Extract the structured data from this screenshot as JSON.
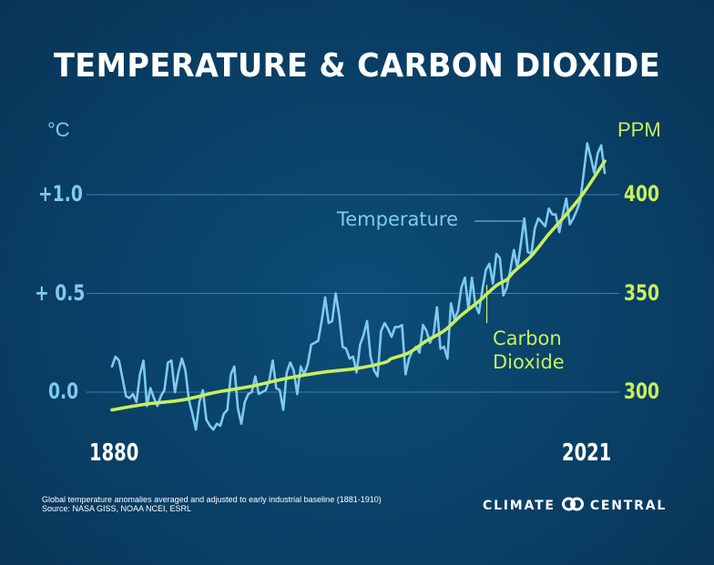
{
  "title": "TEMPERATURE & CARBON DIOXIDE",
  "footnote": {
    "line1": "Global temperature anomalies averaged and adjusted to early industrial baseline (1881-1910)",
    "line2": "Source: NASA GISS, NOAA NCEI, ESRL"
  },
  "brand": {
    "left": "CLIMATE",
    "right": "CENTRAL",
    "logo_icon": "interlocking-rings-icon"
  },
  "colors": {
    "temperature": "#7fcaef",
    "co2": "#c8ef5c",
    "grid": "#4f95bd",
    "background": "#0a4269",
    "text": "#ffffff"
  },
  "chart_data": {
    "type": "line",
    "title": "TEMPERATURE & CARBON DIOXIDE",
    "x_range": [
      1880,
      2021
    ],
    "x_tick_labels": [
      "1880",
      "2021"
    ],
    "grid": "horizontal",
    "y_left": {
      "label": "°C",
      "range": [
        -0.2,
        1.3
      ],
      "ticks": [
        0.0,
        0.5,
        1.0
      ],
      "tick_labels": [
        "0.0",
        "+ 0.5",
        "+1.0"
      ]
    },
    "y_right": {
      "label": "PPM",
      "range": [
        290.8,
        420
      ],
      "ticks": [
        300,
        350,
        400
      ],
      "tick_labels": [
        "300",
        "350",
        "400"
      ]
    },
    "annotations": [
      {
        "text": "Temperature",
        "series": "Temperature",
        "at_year": 1998
      },
      {
        "text": "Carbon Dioxide",
        "series": "Carbon Dioxide",
        "at_year": 1987
      }
    ],
    "series": [
      {
        "name": "Temperature",
        "axis": "left",
        "unit": "°C",
        "x_start": 1880,
        "values": [
          0.13,
          0.18,
          0.16,
          0.07,
          -0.02,
          -0.03,
          -0.01,
          -0.05,
          0.09,
          0.16,
          -0.07,
          0.02,
          -0.03,
          -0.07,
          -0.02,
          0.01,
          0.15,
          0.16,
          0.0,
          0.1,
          0.17,
          0.11,
          -0.04,
          -0.11,
          -0.19,
          -0.05,
          0.01,
          -0.14,
          -0.17,
          -0.19,
          -0.16,
          -0.17,
          -0.11,
          -0.09,
          0.09,
          0.13,
          -0.08,
          -0.16,
          -0.05,
          -0.01,
          0.0,
          0.08,
          -0.01,
          0.0,
          0.01,
          0.06,
          0.16,
          0.02,
          0.01,
          -0.09,
          0.1,
          0.15,
          0.11,
          -0.01,
          0.13,
          0.09,
          0.14,
          0.24,
          0.25,
          0.26,
          0.36,
          0.48,
          0.35,
          0.36,
          0.5,
          0.39,
          0.23,
          0.22,
          0.17,
          0.18,
          0.1,
          0.24,
          0.29,
          0.36,
          0.18,
          0.11,
          0.08,
          0.31,
          0.35,
          0.32,
          0.28,
          0.33,
          0.33,
          0.34,
          0.09,
          0.17,
          0.21,
          0.23,
          0.2,
          0.34,
          0.31,
          0.25,
          0.29,
          0.43,
          0.22,
          0.23,
          0.17,
          0.45,
          0.37,
          0.41,
          0.53,
          0.58,
          0.42,
          0.58,
          0.44,
          0.4,
          0.52,
          0.62,
          0.65,
          0.55,
          0.7,
          0.68,
          0.49,
          0.53,
          0.62,
          0.72,
          0.63,
          0.75,
          0.88,
          0.71,
          0.7,
          0.83,
          0.88,
          0.86,
          0.84,
          0.93,
          0.9,
          0.9,
          0.81,
          0.9,
          0.98,
          0.85,
          0.88,
          0.92,
          0.97,
          1.11,
          1.26,
          1.19,
          1.11,
          1.21,
          1.25,
          1.11
        ]
      },
      {
        "name": "Carbon Dioxide",
        "axis": "right",
        "unit": "ppm",
        "points": [
          [
            1880,
            291
          ],
          [
            1890,
            294
          ],
          [
            1900,
            296
          ],
          [
            1910,
            300
          ],
          [
            1920,
            303
          ],
          [
            1930,
            307
          ],
          [
            1940,
            310
          ],
          [
            1950,
            312
          ],
          [
            1958,
            315
          ],
          [
            1960,
            317
          ],
          [
            1965,
            320
          ],
          [
            1970,
            326
          ],
          [
            1975,
            331
          ],
          [
            1980,
            339
          ],
          [
            1985,
            346
          ],
          [
            1990,
            354
          ],
          [
            1993,
            357
          ],
          [
            1995,
            361
          ],
          [
            2000,
            369
          ],
          [
            2005,
            380
          ],
          [
            2010,
            390
          ],
          [
            2015,
            401
          ],
          [
            2021,
            417
          ]
        ]
      }
    ]
  }
}
